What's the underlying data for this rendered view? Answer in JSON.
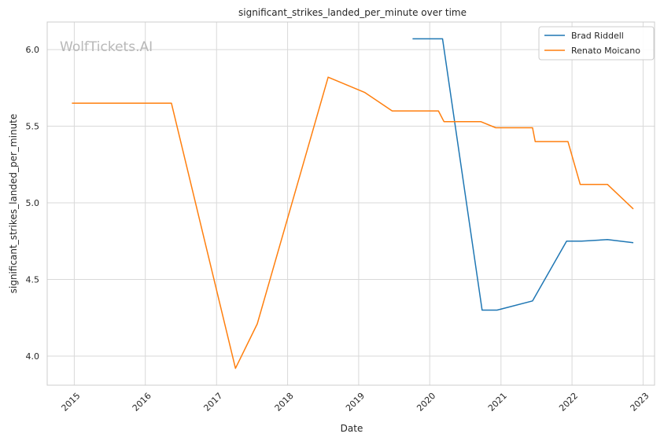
{
  "chart_data": {
    "type": "line",
    "title": "significant_strikes_landed_per_minute over time",
    "xlabel": "Date",
    "ylabel": "significant_strikes_landed_per_minute",
    "watermark": "WolfTickets.AI",
    "x_ticks": [
      "2015",
      "2016",
      "2017",
      "2018",
      "2019",
      "2020",
      "2021",
      "2022",
      "2023"
    ],
    "y_ticks": [
      "4.0",
      "4.5",
      "5.0",
      "5.5",
      "6.0"
    ],
    "xlim": [
      "2014-08-15",
      "2023-03-01"
    ],
    "ylim": [
      3.81,
      6.18
    ],
    "grid": true,
    "legend_position": "top-right",
    "series": [
      {
        "name": "Brad Riddell",
        "color": "#1f77b4",
        "points": [
          [
            "2019-10-05",
            6.07
          ],
          [
            "2020-03-07",
            6.07
          ],
          [
            "2020-09-26",
            4.3
          ],
          [
            "2020-12-12",
            4.3
          ],
          [
            "2021-06-12",
            4.36
          ],
          [
            "2021-12-04",
            4.75
          ],
          [
            "2022-02-19",
            4.75
          ],
          [
            "2022-07-02",
            4.76
          ],
          [
            "2022-11-12",
            4.74
          ]
        ]
      },
      {
        "name": "Renato Moicano",
        "color": "#ff7f0e",
        "points": [
          [
            "2014-12-20",
            5.65
          ],
          [
            "2016-05-14",
            5.65
          ],
          [
            "2017-04-08",
            3.92
          ],
          [
            "2017-07-29",
            4.21
          ],
          [
            "2018-07-28",
            5.82
          ],
          [
            "2019-02-02",
            5.72
          ],
          [
            "2019-06-22",
            5.6
          ],
          [
            "2020-02-15",
            5.6
          ],
          [
            "2020-03-14",
            5.53
          ],
          [
            "2020-09-19",
            5.53
          ],
          [
            "2020-12-05",
            5.49
          ],
          [
            "2021-06-12",
            5.49
          ],
          [
            "2021-06-26",
            5.4
          ],
          [
            "2021-12-11",
            5.4
          ],
          [
            "2022-02-12",
            5.12
          ],
          [
            "2022-07-02",
            5.12
          ],
          [
            "2022-11-12",
            4.96
          ]
        ]
      }
    ]
  }
}
